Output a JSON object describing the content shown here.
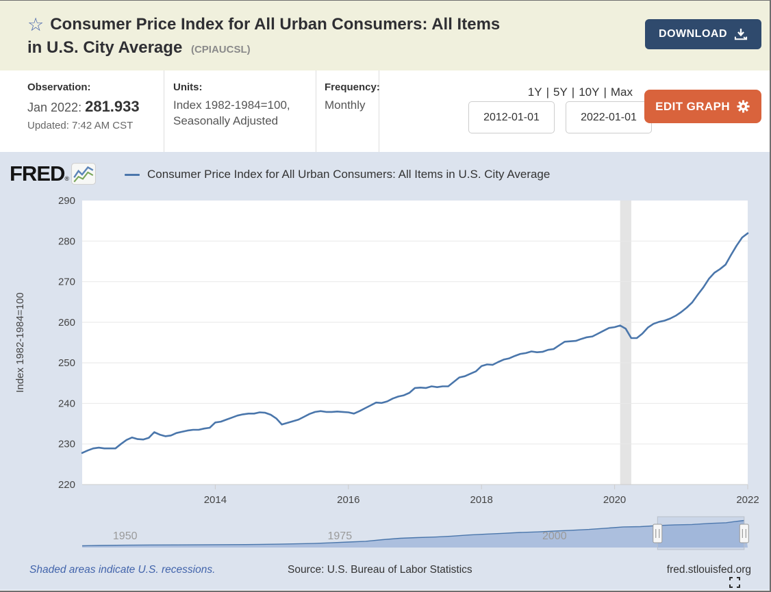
{
  "header": {
    "title_line1": "Consumer Price Index for All Urban Consumers: All Items",
    "title_line2": "in U.S. City Average",
    "series_code": "(CPIAUCSL)",
    "download_button": "DOWNLOAD"
  },
  "info_bar": {
    "observation": {
      "label": "Observation:",
      "date": "Jan 2022:",
      "value": "281.933",
      "updated": "Updated: 7:42 AM CST"
    },
    "units": {
      "label": "Units:",
      "line1": "Index 1982-1984=100,",
      "line2": "Seasonally Adjusted"
    },
    "frequency": {
      "label": "Frequency:",
      "value": "Monthly"
    },
    "range_links": {
      "y1": "1Y",
      "y5": "5Y",
      "y10": "10Y",
      "max": "Max",
      "separator": "|"
    },
    "date_from": "2012-01-01",
    "date_to": "2022-01-01",
    "edit_graph_button": "EDIT GRAPH"
  },
  "graph": {
    "logo": "FRED",
    "logo_mark": "®",
    "legend_label": "Consumer Price Index for All Urban Consumers: All Items in U.S. City Average"
  },
  "footer": {
    "note": "Shaded areas indicate U.S. recessions.",
    "source": "Source: U.S. Bureau of Labor Statistics",
    "site": "fred.stlouisfed.org"
  },
  "colors": {
    "header_bg": "#f0f0dd",
    "navy_button": "#2f4a6d",
    "orange_button": "#d9633c",
    "graph_bg": "#dce3ee",
    "line": "#4a76ab",
    "recession_band": "#e4e4e4",
    "nav_fill": "#a6badb",
    "gridline": "#e8e8e8"
  },
  "chart_data": {
    "type": "line",
    "title": "Consumer Price Index for All Urban Consumers: All Items in U.S. City Average",
    "xlabel": "",
    "ylabel": "Index 1982-1984=100",
    "ylim": [
      220,
      290
    ],
    "yticks": [
      220,
      230,
      240,
      250,
      260,
      270,
      280,
      290
    ],
    "xticks": [
      2014,
      2016,
      2018,
      2020,
      2022
    ],
    "x_range": [
      2012.0,
      2022.0
    ],
    "grid": "horizontal",
    "legend_position": "top-left",
    "frequency": "monthly",
    "series": [
      {
        "name": "Consumer Price Index for All Urban Consumers: All Items in U.S. City Average",
        "color": "#4a76ab",
        "start_year": 2012,
        "points_per_year": 12,
        "values": [
          227.8,
          228.4,
          228.9,
          229.1,
          228.9,
          228.9,
          228.9,
          230.0,
          231.0,
          231.6,
          231.2,
          231.1,
          231.5,
          232.9,
          232.3,
          231.9,
          232.1,
          232.7,
          233.0,
          233.3,
          233.5,
          233.5,
          233.8,
          234.0,
          235.3,
          235.5,
          236.0,
          236.5,
          237.0,
          237.3,
          237.5,
          237.5,
          237.8,
          237.7,
          237.2,
          236.3,
          234.8,
          235.2,
          235.6,
          236.0,
          236.7,
          237.4,
          237.9,
          238.1,
          237.9,
          237.9,
          238.0,
          237.9,
          237.8,
          237.5,
          238.1,
          238.8,
          239.5,
          240.2,
          240.1,
          240.5,
          241.2,
          241.7,
          242.0,
          242.6,
          243.8,
          243.9,
          243.8,
          244.2,
          244.0,
          244.2,
          244.2,
          245.3,
          246.4,
          246.7,
          247.3,
          247.9,
          249.2,
          249.6,
          249.5,
          250.2,
          250.8,
          251.1,
          251.7,
          252.2,
          252.4,
          252.8,
          252.6,
          252.7,
          253.2,
          253.4,
          254.3,
          255.2,
          255.3,
          255.4,
          255.9,
          256.3,
          256.5,
          257.2,
          257.9,
          258.6,
          258.8,
          259.2,
          258.4,
          256.1,
          256.1,
          257.2,
          258.7,
          259.6,
          260.1,
          260.4,
          260.9,
          261.6,
          262.5,
          263.6,
          264.9,
          266.8,
          268.6,
          270.7,
          272.2,
          273.1,
          274.2,
          276.6,
          278.9,
          280.9,
          281.933
        ]
      }
    ],
    "recession_bands": [
      {
        "start": 2020.083,
        "end": 2020.25
      }
    ],
    "navigator": {
      "range": [
        1945,
        2022.5
      ],
      "value_max": 300,
      "selection": [
        2012.0,
        2022.083
      ],
      "labels": [
        {
          "text": "1950",
          "year": 1950
        },
        {
          "text": "1975",
          "year": 1975
        },
        {
          "text": "2000",
          "year": 2000
        }
      ],
      "points": [
        [
          1945,
          18.0
        ],
        [
          1947,
          21.5
        ],
        [
          1950,
          24.1
        ],
        [
          1953,
          26.7
        ],
        [
          1956,
          27.2
        ],
        [
          1960,
          29.6
        ],
        [
          1964,
          31.0
        ],
        [
          1968,
          34.8
        ],
        [
          1970,
          38.8
        ],
        [
          1972,
          41.8
        ],
        [
          1974,
          49.3
        ],
        [
          1976,
          56.9
        ],
        [
          1978,
          65.2
        ],
        [
          1980,
          82.4
        ],
        [
          1982,
          96.5
        ],
        [
          1984,
          103.9
        ],
        [
          1986,
          109.6
        ],
        [
          1988,
          118.3
        ],
        [
          1990,
          130.7
        ],
        [
          1992,
          140.3
        ],
        [
          1994,
          148.2
        ],
        [
          1996,
          156.9
        ],
        [
          1998,
          163.0
        ],
        [
          2000,
          172.2
        ],
        [
          2002,
          179.9
        ],
        [
          2004,
          188.9
        ],
        [
          2006,
          201.6
        ],
        [
          2008,
          215.3
        ],
        [
          2010,
          218.1
        ],
        [
          2012,
          229.6
        ],
        [
          2014,
          236.7
        ],
        [
          2016,
          240.0
        ],
        [
          2018,
          251.1
        ],
        [
          2020,
          258.8
        ],
        [
          2021,
          271.0
        ],
        [
          2022.083,
          281.9
        ]
      ]
    }
  }
}
